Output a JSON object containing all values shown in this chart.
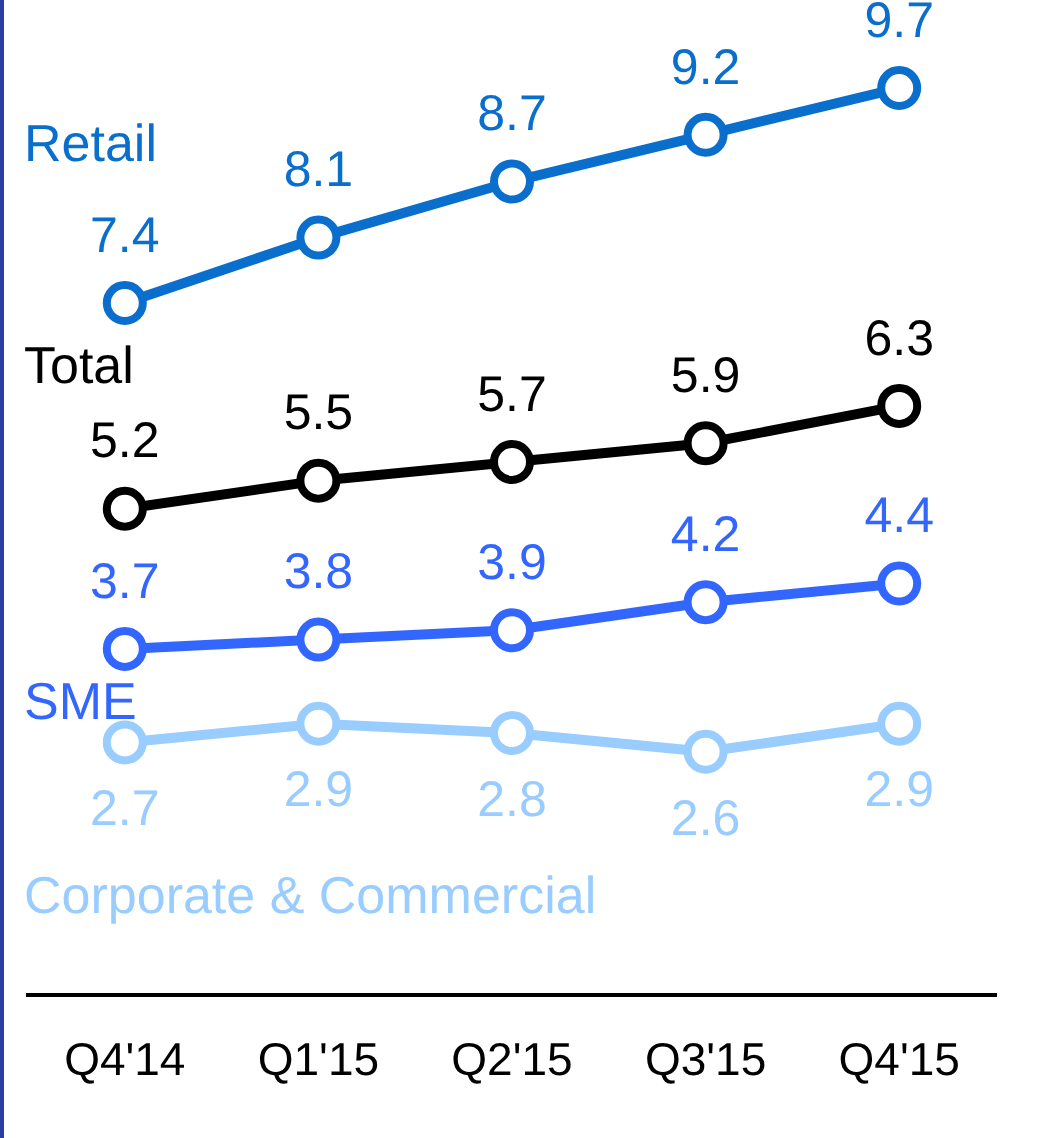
{
  "chart_data": {
    "type": "line",
    "categories": [
      "Q4'14",
      "Q1'15",
      "Q2'15",
      "Q3'15",
      "Q4'15"
    ],
    "series": [
      {
        "name": "Retail",
        "color": "#0a6ecd",
        "values": [
          7.4,
          8.1,
          8.7,
          9.2,
          9.7
        ]
      },
      {
        "name": "Total",
        "color": "#000000",
        "values": [
          5.2,
          5.5,
          5.7,
          5.9,
          6.3
        ]
      },
      {
        "name": "SME",
        "color": "#3366ff",
        "values": [
          3.7,
          3.8,
          3.9,
          4.2,
          4.4
        ]
      },
      {
        "name": "Corporate & Commercial",
        "color": "#99ccff",
        "values": [
          2.7,
          2.9,
          2.8,
          2.6,
          2.9
        ]
      }
    ],
    "tick_labels": "x",
    "grid": false,
    "legend": false,
    "marker": "circle",
    "line_style": "solid",
    "data_labels": true
  }
}
